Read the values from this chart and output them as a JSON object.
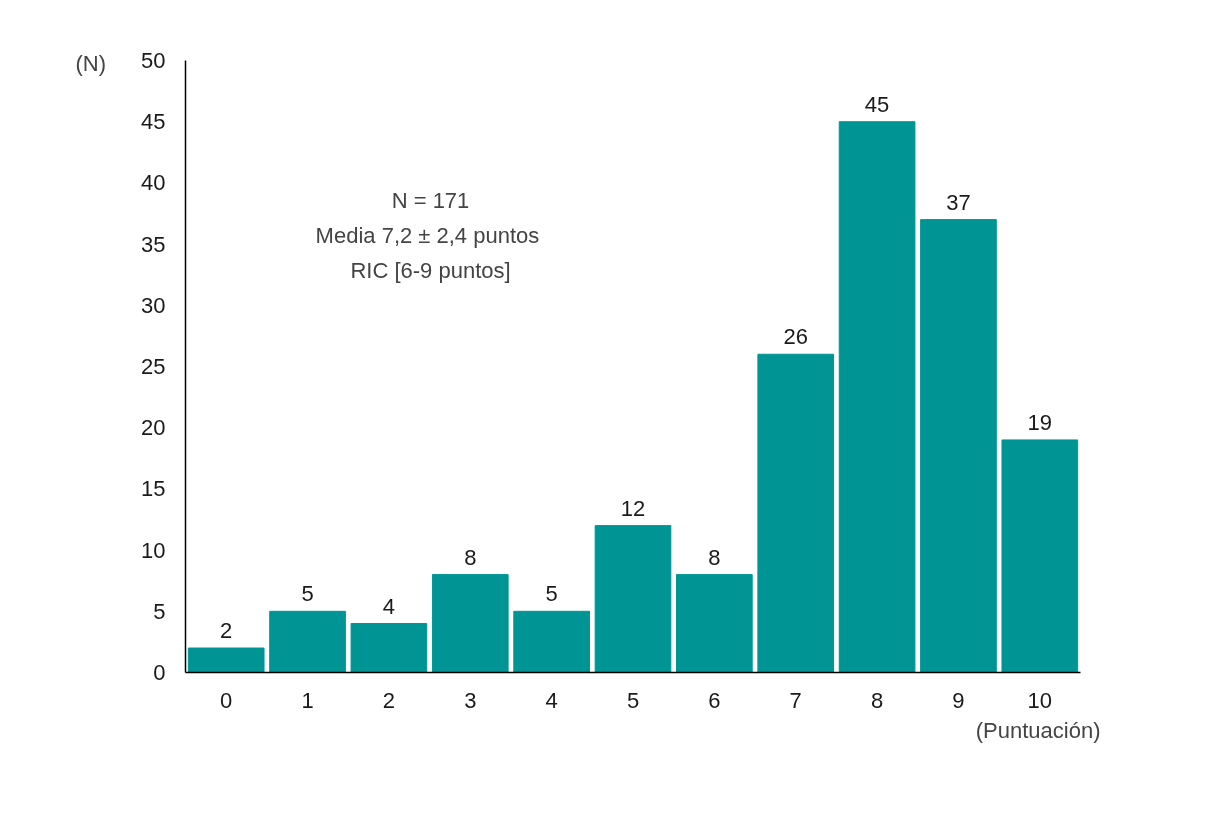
{
  "chart_data": {
    "type": "bar",
    "xlabel": "(Puntuación)",
    "ylabel": "(N)",
    "categories": [
      "0",
      "1",
      "2",
      "3",
      "4",
      "5",
      "6",
      "7",
      "8",
      "9",
      "10"
    ],
    "values": [
      2,
      5,
      4,
      8,
      5,
      12,
      8,
      26,
      45,
      37,
      19
    ],
    "color": "#009595",
    "data_labels": true,
    "grid": false,
    "ylim": [
      0,
      50
    ],
    "yticks": [
      0,
      5,
      10,
      15,
      20,
      25,
      30,
      35,
      40,
      45,
      50
    ],
    "annotations": [
      "N = 171",
      "Media 7,2 ±  2,4 puntos",
      "RIC [6-9 puntos]"
    ]
  }
}
